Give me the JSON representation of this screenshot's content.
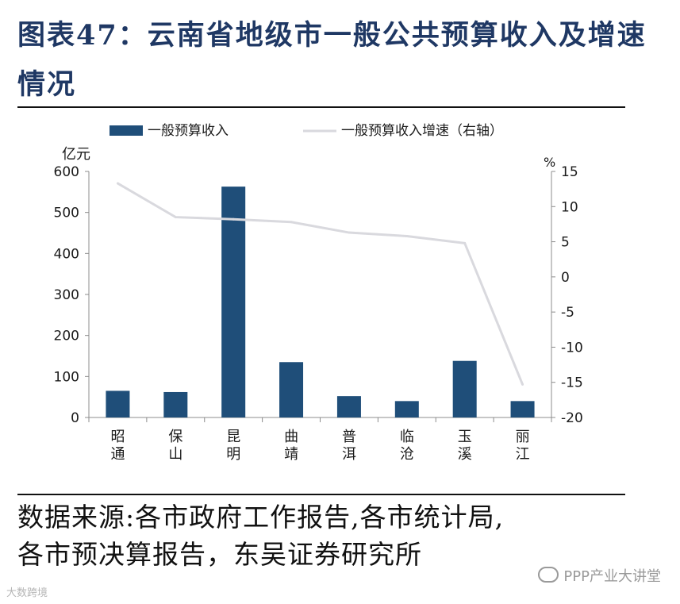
{
  "header": {
    "title": "图表47：云南省地级市一般公共预算收入及增速情况"
  },
  "chart_data": {
    "type": "bar",
    "categories": [
      "昭通",
      "保山",
      "昆明",
      "曲靖",
      "普洱",
      "临沧",
      "玉溪",
      "丽江"
    ],
    "category_lines": [
      [
        "昭",
        "通"
      ],
      [
        "保",
        "山"
      ],
      [
        "昆",
        "明"
      ],
      [
        "曲",
        "靖"
      ],
      [
        "普",
        "洱"
      ],
      [
        "临",
        "沧"
      ],
      [
        "玉",
        "溪"
      ],
      [
        "丽",
        "江"
      ]
    ],
    "series": [
      {
        "name": "一般预算收入",
        "type": "bar",
        "axis": "left",
        "color": "#1f4e79",
        "values": [
          65,
          62,
          563,
          135,
          52,
          40,
          138,
          40
        ]
      },
      {
        "name": "一般预算收入增速（右轴）",
        "type": "line",
        "axis": "right",
        "color": "#d9d9de",
        "values": [
          13.3,
          8.5,
          8.2,
          7.8,
          6.3,
          5.8,
          4.8,
          -15.3
        ]
      }
    ],
    "y_left": {
      "label": "亿元",
      "min": 0,
      "max": 600,
      "ticks": [
        "0",
        "100",
        "200",
        "300",
        "400",
        "500",
        "600"
      ]
    },
    "y_right": {
      "label": "%",
      "min": -20,
      "max": 15,
      "ticks": [
        "-20",
        "-15",
        "-10",
        "-5",
        "0",
        "5",
        "10",
        "15"
      ]
    },
    "legend_position": "top"
  },
  "footer": {
    "source_line1": "数据来源:各市政府工作报告,各市统计局,",
    "source_line2": "各市预决算报告，东吴证券研究所",
    "watermark_right": "PPP产业大讲堂",
    "watermark_left": "大数跨境"
  }
}
